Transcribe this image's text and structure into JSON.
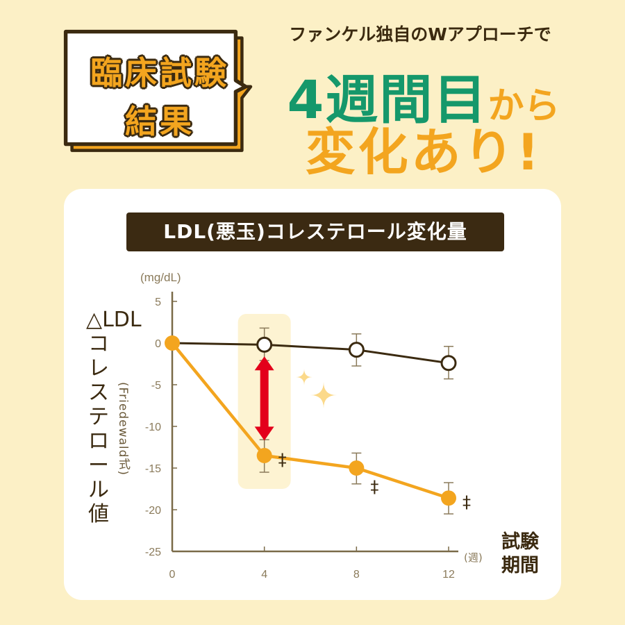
{
  "callout": {
    "lines": [
      "臨床試験",
      "結果"
    ]
  },
  "headline": {
    "subtitle": "ファンケル独自のWアプローチで",
    "line1_emphasis": "4週間目",
    "line1_rest": "から",
    "line2": "変化あり!"
  },
  "colors": {
    "background": "#fcf0c6",
    "orange": "#f3a51f",
    "green": "#15986b",
    "dark": "#3b2a10",
    "arrow": "#e3001b"
  },
  "chart_data": {
    "type": "line",
    "title": "LDL(悪玉)コレステロール変化量",
    "unit": "(mg/dL)",
    "ylabel": "△LDLコレステロール値",
    "ylabel_note": "(Friedewald式)",
    "xlabel": "試験期間",
    "xunit": "(週)",
    "x": [
      0,
      4,
      8,
      12
    ],
    "xticks": [
      "0",
      "4",
      "8",
      "12"
    ],
    "yticks": [
      "5",
      "0",
      "-5",
      "-10",
      "-15",
      "-20",
      "-25"
    ],
    "ylim": [
      -25,
      5
    ],
    "grid": false,
    "series": [
      {
        "style": "open-circle-dark",
        "values": [
          0,
          -0.2,
          -0.8,
          -2.4
        ],
        "err_low": [
          null,
          -2.1,
          -2.75,
          -4.3
        ],
        "err_high": [
          null,
          1.8,
          1.1,
          -0.4
        ]
      },
      {
        "style": "filled-orange",
        "values": [
          0,
          -13.5,
          -15.0,
          -18.6
        ],
        "err_low": [
          null,
          -15.5,
          -16.9,
          -20.5
        ],
        "err_high": [
          null,
          -11.6,
          -13.2,
          -16.75
        ]
      }
    ],
    "significance_marks": [
      "‡",
      "‡",
      "‡"
    ],
    "highlight_week": 4
  }
}
